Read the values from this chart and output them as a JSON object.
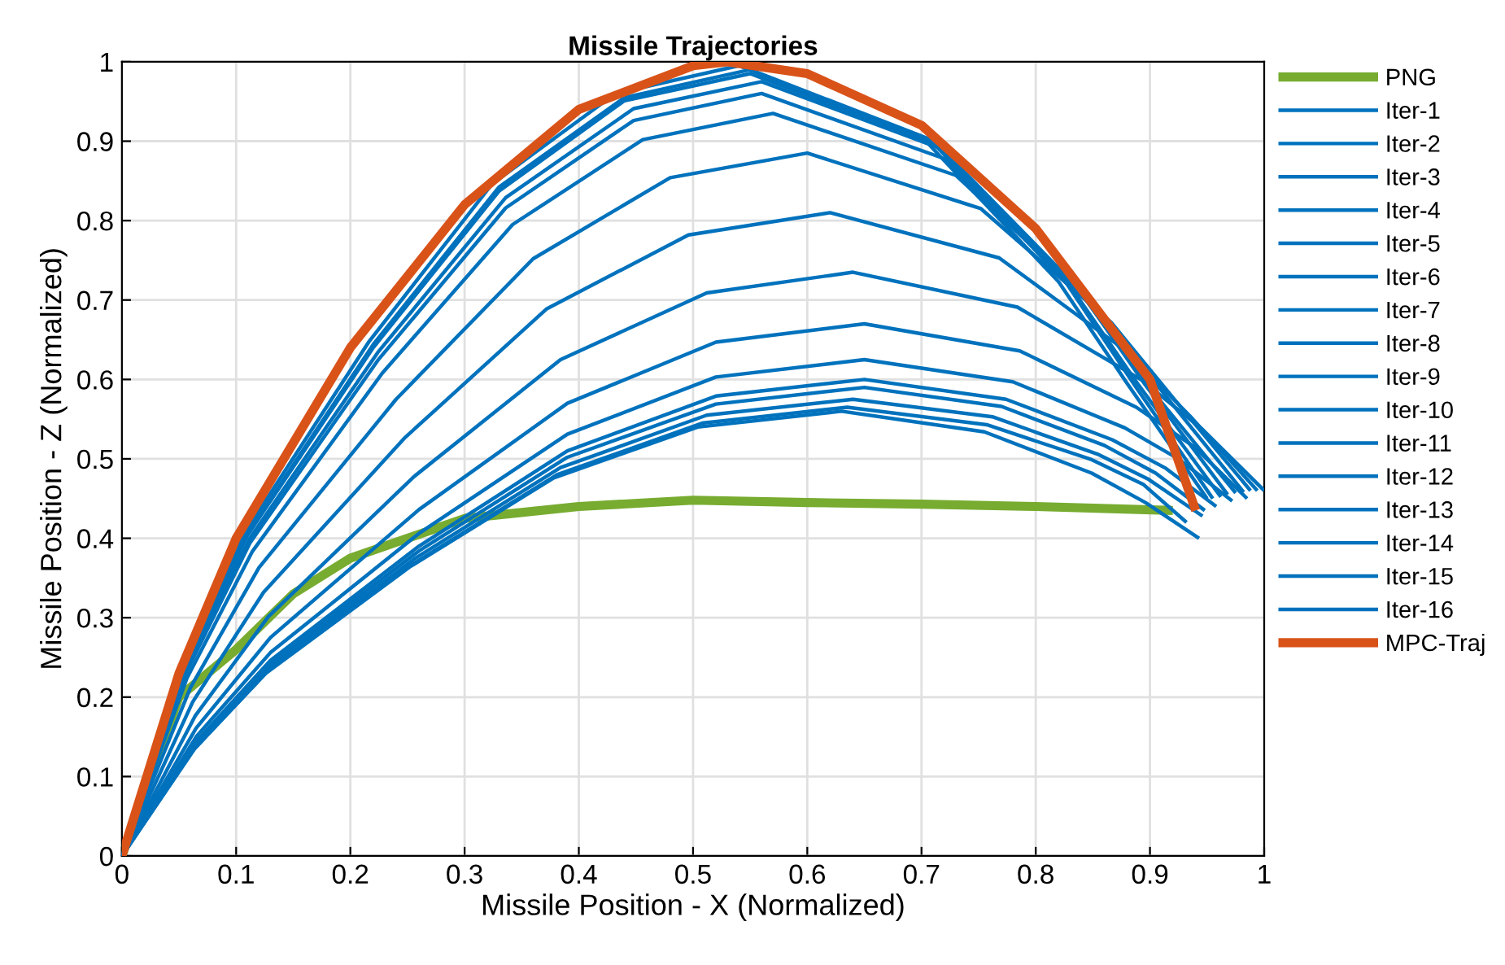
{
  "chart_data": {
    "type": "line",
    "title": "Missile Trajectories",
    "xlabel": "Missile Position - X (Normalized)",
    "ylabel": "Missile Position - Z (Normalized)",
    "xlim": [
      0,
      1
    ],
    "ylim": [
      0,
      1
    ],
    "xticks": [
      0,
      0.1,
      0.2,
      0.3,
      0.4,
      0.5,
      0.6,
      0.7,
      0.8,
      0.9,
      1
    ],
    "yticks": [
      0,
      0.1,
      0.2,
      0.3,
      0.4,
      0.5,
      0.6,
      0.7,
      0.8,
      0.9,
      1
    ],
    "grid": true,
    "legend": "right",
    "series": [
      {
        "name": "PNG",
        "color": "#77ac30",
        "x": [
          0,
          0.05,
          0.1,
          0.15,
          0.2,
          0.3,
          0.4,
          0.5,
          0.6,
          0.7,
          0.8,
          0.92
        ],
        "values": [
          0,
          0.2,
          0.26,
          0.33,
          0.375,
          0.425,
          0.44,
          0.448,
          0.445,
          0.443,
          0.44,
          0.435
        ]
      },
      {
        "name": "Iter-1",
        "color": "#0072bd",
        "x": [
          0,
          0.054,
          0.108,
          0.216,
          0.324,
          0.432,
          0.54,
          0.7,
          0.82,
          0.88,
          0.95
        ],
        "values": [
          0,
          0.239,
          0.408,
          0.647,
          0.846,
          0.96,
          0.995,
          0.906,
          0.723,
          0.595,
          0.45
        ]
      },
      {
        "name": "Iter-2",
        "color": "#0072bd",
        "x": [
          0,
          0.055,
          0.11,
          0.22,
          0.33,
          0.44,
          0.55,
          0.708,
          0.827,
          0.886,
          0.955
        ],
        "values": [
          0,
          0.238,
          0.406,
          0.644,
          0.842,
          0.955,
          0.99,
          0.902,
          0.721,
          0.594,
          0.45
        ]
      },
      {
        "name": "Iter-3",
        "color": "#0072bd",
        "x": [
          0,
          0.055,
          0.11,
          0.22,
          0.33,
          0.44,
          0.55,
          0.71,
          0.83,
          0.89,
          0.962
        ],
        "values": [
          0,
          0.236,
          0.404,
          0.64,
          0.837,
          0.951,
          0.985,
          0.898,
          0.718,
          0.593,
          0.452
        ]
      },
      {
        "name": "Iter-4",
        "color": "#0072bd",
        "x": [
          0,
          0.056,
          0.112,
          0.224,
          0.336,
          0.448,
          0.56,
          0.718,
          0.837,
          0.896,
          0.968
        ],
        "values": [
          0,
          0.234,
          0.4,
          0.634,
          0.829,
          0.941,
          0.975,
          0.89,
          0.715,
          0.593,
          0.455
        ]
      },
      {
        "name": "Iter-5",
        "color": "#0072bd",
        "x": [
          0,
          0.056,
          0.112,
          0.224,
          0.336,
          0.448,
          0.56,
          0.72,
          0.84,
          0.9,
          0.975
        ],
        "values": [
          0,
          0.23,
          0.394,
          0.624,
          0.816,
          0.926,
          0.96,
          0.878,
          0.708,
          0.589,
          0.457
        ]
      },
      {
        "name": "Iter-6",
        "color": "#0072bd",
        "x": [
          0,
          0.057,
          0.114,
          0.228,
          0.342,
          0.456,
          0.57,
          0.73,
          0.85,
          0.91,
          0.982
        ],
        "values": [
          0,
          0.224,
          0.383,
          0.608,
          0.795,
          0.902,
          0.935,
          0.857,
          0.697,
          0.586,
          0.458
        ]
      },
      {
        "name": "Iter-7",
        "color": "#0072bd",
        "x": [
          0,
          0.06,
          0.12,
          0.24,
          0.36,
          0.48,
          0.6,
          0.752,
          0.866,
          0.923,
          0.988
        ],
        "values": [
          0,
          0.212,
          0.363,
          0.575,
          0.752,
          0.854,
          0.885,
          0.815,
          0.672,
          0.572,
          0.46
        ]
      },
      {
        "name": "Iter-8",
        "color": "#0072bd",
        "x": [
          0,
          0.062,
          0.124,
          0.248,
          0.372,
          0.496,
          0.62,
          0.768,
          0.879,
          0.935,
          0.994
        ],
        "values": [
          0,
          0.194,
          0.332,
          0.527,
          0.689,
          0.782,
          0.81,
          0.753,
          0.636,
          0.554,
          0.46
        ]
      },
      {
        "name": "Iter-9",
        "color": "#0072bd",
        "x": [
          0,
          0.064,
          0.128,
          0.256,
          0.384,
          0.512,
          0.64,
          0.784,
          0.892,
          0.946,
          1.0
        ],
        "values": [
          0,
          0.176,
          0.301,
          0.478,
          0.625,
          0.709,
          0.735,
          0.691,
          0.6,
          0.537,
          0.46
        ]
      },
      {
        "name": "Iter-10",
        "color": "#0072bd",
        "x": [
          0,
          0.065,
          0.13,
          0.26,
          0.39,
          0.52,
          0.65,
          0.786,
          0.888,
          0.939,
          0.985
        ],
        "values": [
          0,
          0.161,
          0.275,
          0.436,
          0.57,
          0.647,
          0.67,
          0.636,
          0.565,
          0.515,
          0.45
        ]
      },
      {
        "name": "Iter-11",
        "color": "#0072bd",
        "x": [
          0,
          0.065,
          0.13,
          0.26,
          0.39,
          0.52,
          0.65,
          0.78,
          0.878,
          0.926,
          0.972
        ],
        "values": [
          0,
          0.15,
          0.256,
          0.406,
          0.531,
          0.603,
          0.625,
          0.597,
          0.539,
          0.499,
          0.447
        ]
      },
      {
        "name": "Iter-12",
        "color": "#0072bd",
        "x": [
          0,
          0.065,
          0.13,
          0.26,
          0.39,
          0.52,
          0.65,
          0.774,
          0.867,
          0.914,
          0.958
        ],
        "values": [
          0,
          0.144,
          0.246,
          0.39,
          0.51,
          0.579,
          0.6,
          0.575,
          0.524,
          0.488,
          0.44
        ]
      },
      {
        "name": "Iter-13",
        "color": "#0072bd",
        "x": [
          0,
          0.065,
          0.13,
          0.26,
          0.39,
          0.52,
          0.65,
          0.77,
          0.86,
          0.905,
          0.948
        ],
        "values": [
          0,
          0.142,
          0.242,
          0.384,
          0.502,
          0.569,
          0.59,
          0.566,
          0.517,
          0.482,
          0.435
        ]
      },
      {
        "name": "Iter-14",
        "color": "#0072bd",
        "x": [
          0,
          0.064,
          0.128,
          0.256,
          0.384,
          0.512,
          0.64,
          0.762,
          0.854,
          0.899,
          0.946
        ],
        "values": [
          0,
          0.138,
          0.236,
          0.374,
          0.489,
          0.555,
          0.575,
          0.553,
          0.506,
          0.474,
          0.428
        ]
      },
      {
        "name": "Iter-15",
        "color": "#0072bd",
        "x": [
          0,
          0.064,
          0.127,
          0.254,
          0.381,
          0.508,
          0.635,
          0.757,
          0.849,
          0.894,
          0.932
        ],
        "values": [
          0,
          0.136,
          0.232,
          0.367,
          0.48,
          0.545,
          0.565,
          0.543,
          0.499,
          0.468,
          0.42
        ]
      },
      {
        "name": "Iter-16",
        "color": "#0072bd",
        "x": [
          0,
          0.063,
          0.126,
          0.252,
          0.378,
          0.504,
          0.63,
          0.755,
          0.849,
          0.896,
          0.943
        ],
        "values": [
          0,
          0.134,
          0.23,
          0.364,
          0.476,
          0.54,
          0.56,
          0.534,
          0.482,
          0.445,
          0.4
        ]
      },
      {
        "name": "MPC-Traj",
        "color": "#d95319",
        "x": [
          0,
          0.05,
          0.1,
          0.2,
          0.3,
          0.4,
          0.5,
          0.53,
          0.6,
          0.7,
          0.8,
          0.9,
          0.94
        ],
        "values": [
          0,
          0.23,
          0.4,
          0.64,
          0.82,
          0.94,
          0.995,
          1.0,
          0.985,
          0.92,
          0.79,
          0.6,
          0.435
        ]
      }
    ]
  }
}
